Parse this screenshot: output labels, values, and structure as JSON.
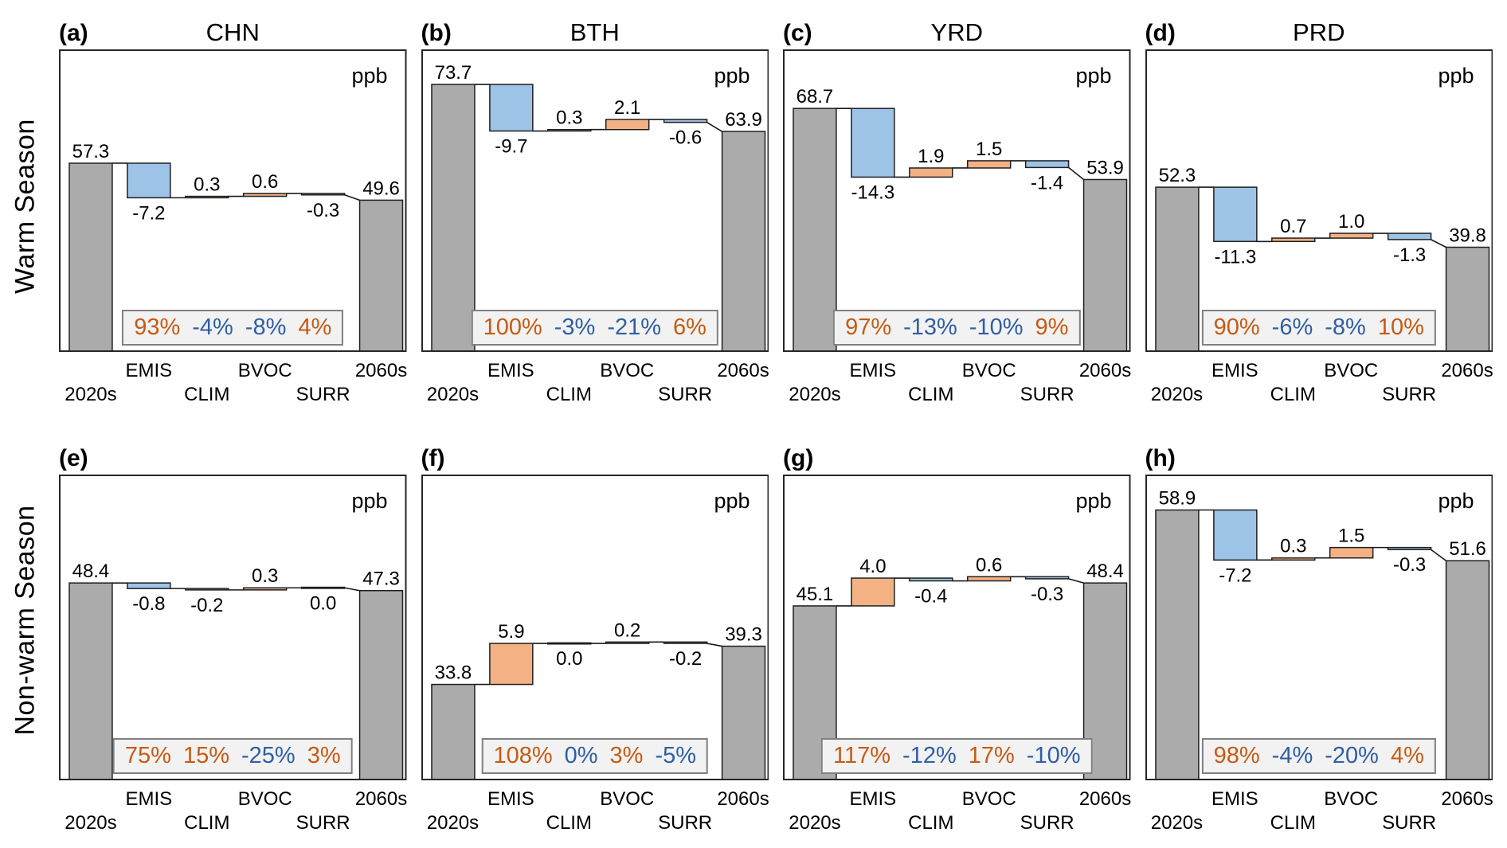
{
  "figure": {
    "rows": [
      {
        "label": "Warm Season"
      },
      {
        "label": "Non-warm Season"
      }
    ],
    "unit_label": "ppb",
    "colors": {
      "bar_gray": "#ABABAB",
      "bar_blue": "#9DC3E6",
      "bar_orange": "#F4B183",
      "bar_stroke": "#1F1F1F",
      "panel_border": "#262626",
      "connector": "#1A1A1A",
      "text": "#000000",
      "pct_orange": "#C75A12",
      "pct_blue": "#2E5FA3",
      "pct_box_bg": "#F2F2F2",
      "pct_box_border": "#808080"
    }
  },
  "chart_data": [
    {
      "type": "bar",
      "waterfall": true,
      "row": 0,
      "panel_letter": "(a)",
      "title": "CHN",
      "unit_label": "ppb",
      "categories": [
        "2020s",
        "EMIS",
        "CLIM",
        "BVOC",
        "SURR",
        "2060s"
      ],
      "start": 57.3,
      "deltas": [
        -7.2,
        0.3,
        0.6,
        -0.3
      ],
      "end": 49.6,
      "value_labels": [
        "57.3",
        "-7.2",
        "0.3",
        "0.6",
        "-0.3",
        "49.6"
      ],
      "percent_labels": [
        "93%",
        "-4%",
        "-8%",
        "4%"
      ],
      "percent_colors": [
        "orange",
        "blue",
        "blue",
        "orange"
      ],
      "ylim": [
        18,
        81
      ],
      "grid": false,
      "legend": "none"
    },
    {
      "type": "bar",
      "waterfall": true,
      "row": 0,
      "panel_letter": "(b)",
      "title": "BTH",
      "unit_label": "ppb",
      "categories": [
        "2020s",
        "EMIS",
        "CLIM",
        "BVOC",
        "SURR",
        "2060s"
      ],
      "start": 73.7,
      "deltas": [
        -9.7,
        0.3,
        2.1,
        -0.6
      ],
      "end": 63.9,
      "value_labels": [
        "73.7",
        "-9.7",
        "0.3",
        "2.1",
        "-0.6",
        "63.9"
      ],
      "percent_labels": [
        "100%",
        "-3%",
        "-21%",
        "6%"
      ],
      "percent_colors": [
        "orange",
        "blue",
        "blue",
        "orange"
      ],
      "ylim": [
        18,
        81
      ],
      "grid": false,
      "legend": "none"
    },
    {
      "type": "bar",
      "waterfall": true,
      "row": 0,
      "panel_letter": "(c)",
      "title": "YRD",
      "unit_label": "ppb",
      "categories": [
        "2020s",
        "EMIS",
        "CLIM",
        "BVOC",
        "SURR",
        "2060s"
      ],
      "start": 68.7,
      "deltas": [
        -14.3,
        1.9,
        1.5,
        -1.4
      ],
      "end": 53.9,
      "value_labels": [
        "68.7",
        "-14.3",
        "1.9",
        "1.5",
        "-1.4",
        "53.9"
      ],
      "percent_labels": [
        "97%",
        "-13%",
        "-10%",
        "9%"
      ],
      "percent_colors": [
        "orange",
        "blue",
        "blue",
        "orange"
      ],
      "ylim": [
        18,
        81
      ],
      "grid": false,
      "legend": "none"
    },
    {
      "type": "bar",
      "waterfall": true,
      "row": 0,
      "panel_letter": "(d)",
      "title": "PRD",
      "unit_label": "ppb",
      "categories": [
        "2020s",
        "EMIS",
        "CLIM",
        "BVOC",
        "SURR",
        "2060s"
      ],
      "start": 52.3,
      "deltas": [
        -11.3,
        0.7,
        1.0,
        -1.3
      ],
      "end": 39.8,
      "value_labels": [
        "52.3",
        "-11.3",
        "0.7",
        "1.0",
        "-1.3",
        "39.8"
      ],
      "percent_labels": [
        "90%",
        "-6%",
        "-8%",
        "10%"
      ],
      "percent_colors": [
        "orange",
        "blue",
        "blue",
        "orange"
      ],
      "ylim": [
        18,
        81
      ],
      "grid": false,
      "legend": "none"
    },
    {
      "type": "bar",
      "waterfall": true,
      "row": 1,
      "panel_letter": "(e)",
      "title": "",
      "unit_label": "ppb",
      "categories": [
        "2020s",
        "EMIS",
        "CLIM",
        "BVOC",
        "SURR",
        "2060s"
      ],
      "start": 48.4,
      "deltas": [
        -0.8,
        -0.2,
        0.3,
        0.0
      ],
      "end": 47.3,
      "value_labels": [
        "48.4",
        "-0.8",
        "-0.2",
        "0.3",
        "0.0",
        "47.3"
      ],
      "percent_labels": [
        "75%",
        "15%",
        "-25%",
        "3%"
      ],
      "percent_colors": [
        "orange",
        "orange",
        "blue",
        "orange"
      ],
      "ylim": [
        20,
        64
      ],
      "grid": false,
      "legend": "none"
    },
    {
      "type": "bar",
      "waterfall": true,
      "row": 1,
      "panel_letter": "(f)",
      "title": "",
      "unit_label": "ppb",
      "categories": [
        "2020s",
        "EMIS",
        "CLIM",
        "BVOC",
        "SURR",
        "2060s"
      ],
      "start": 33.8,
      "deltas": [
        5.9,
        0.0,
        0.2,
        -0.2
      ],
      "end": 39.3,
      "value_labels": [
        "33.8",
        "5.9",
        "0.0",
        "0.2",
        "-0.2",
        "39.3"
      ],
      "percent_labels": [
        "108%",
        "0%",
        "3%",
        "-5%"
      ],
      "percent_colors": [
        "orange",
        "blue",
        "orange",
        "blue"
      ],
      "ylim": [
        20,
        64
      ],
      "grid": false,
      "legend": "none"
    },
    {
      "type": "bar",
      "waterfall": true,
      "row": 1,
      "panel_letter": "(g)",
      "title": "",
      "unit_label": "ppb",
      "categories": [
        "2020s",
        "EMIS",
        "CLIM",
        "BVOC",
        "SURR",
        "2060s"
      ],
      "start": 45.1,
      "deltas": [
        4.0,
        -0.4,
        0.6,
        -0.3
      ],
      "end": 48.4,
      "value_labels": [
        "45.1",
        "4.0",
        "-0.4",
        "0.6",
        "-0.3",
        "48.4"
      ],
      "percent_labels": [
        "117%",
        "-12%",
        "17%",
        "-10%"
      ],
      "percent_colors": [
        "orange",
        "blue",
        "orange",
        "blue"
      ],
      "ylim": [
        20,
        64
      ],
      "grid": false,
      "legend": "none"
    },
    {
      "type": "bar",
      "waterfall": true,
      "row": 1,
      "panel_letter": "(h)",
      "title": "",
      "unit_label": "ppb",
      "categories": [
        "2020s",
        "EMIS",
        "CLIM",
        "BVOC",
        "SURR",
        "2060s"
      ],
      "start": 58.9,
      "deltas": [
        -7.2,
        0.3,
        1.5,
        -0.3
      ],
      "end": 51.6,
      "value_labels": [
        "58.9",
        "-7.2",
        "0.3",
        "1.5",
        "-0.3",
        "51.6"
      ],
      "percent_labels": [
        "98%",
        "-4%",
        "-20%",
        "4%"
      ],
      "percent_colors": [
        "orange",
        "blue",
        "blue",
        "orange"
      ],
      "ylim": [
        20,
        64
      ],
      "grid": false,
      "legend": "none"
    }
  ]
}
